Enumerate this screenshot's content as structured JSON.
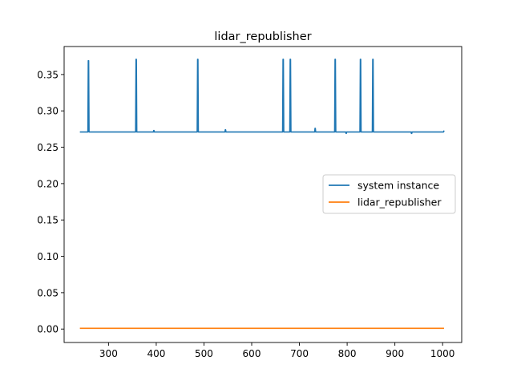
{
  "chart_data": {
    "type": "line",
    "title": "lidar_republisher",
    "xlabel": "",
    "ylabel": "",
    "xlim": [
      207,
      1040
    ],
    "ylim": [
      -0.0185,
      0.3885
    ],
    "xticks": [
      300,
      400,
      500,
      600,
      700,
      800,
      900,
      1000
    ],
    "yticks": [
      0.0,
      0.05,
      0.1,
      0.15,
      0.2,
      0.25,
      0.3,
      0.35
    ],
    "ytick_labels": [
      "0.00",
      "0.05",
      "0.10",
      "0.15",
      "0.20",
      "0.25",
      "0.30",
      "0.35"
    ],
    "grid": false,
    "legend_position": "center-right",
    "series": [
      {
        "name": "system instance",
        "color": "#1f77b4",
        "baseline": 0.271,
        "x_range": [
          240,
          1003
        ],
        "spikes": [
          {
            "x": 258,
            "y": 0.369
          },
          {
            "x": 358,
            "y": 0.371
          },
          {
            "x": 487,
            "y": 0.371
          },
          {
            "x": 666,
            "y": 0.371
          },
          {
            "x": 681,
            "y": 0.371
          },
          {
            "x": 775,
            "y": 0.371
          },
          {
            "x": 828,
            "y": 0.371
          },
          {
            "x": 854,
            "y": 0.371
          }
        ],
        "bumps": [
          {
            "x": 395,
            "y": 0.273
          },
          {
            "x": 545,
            "y": 0.274
          },
          {
            "x": 733,
            "y": 0.276
          },
          {
            "x": 798,
            "y": 0.269
          },
          {
            "x": 935,
            "y": 0.269
          },
          {
            "x": 1003,
            "y": 0.273
          }
        ]
      },
      {
        "name": "lidar_republisher",
        "color": "#ff7f0e",
        "baseline": 0.001,
        "x_range": [
          240,
          1003
        ],
        "spikes": [],
        "bumps": []
      }
    ]
  }
}
